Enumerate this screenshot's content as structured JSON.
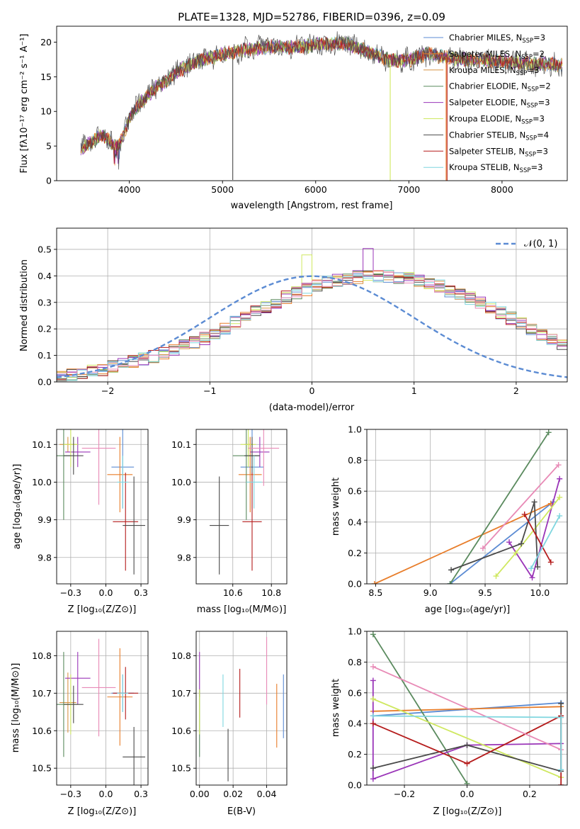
{
  "title": "PLATE=1328, MJD=52786, FIBERID=0396, z=0.09",
  "models": [
    {
      "name": "Chabrier MILES, N$_{SSP}$=3",
      "label": "Chabrier MILES, N",
      "sub": "SSP",
      "tail": "=3",
      "color": "#5b8bd3"
    },
    {
      "name": "Salpeter MILES, N$_{SSP}$=2",
      "label": "Salpeter MILES, N",
      "sub": "SSP",
      "tail": "=2",
      "color": "#e87d2a"
    },
    {
      "name": "Kroupa MILES, N$_{SSP}$=3",
      "label": "Kroupa MILES, N",
      "sub": "SSP",
      "tail": "=3",
      "color": "#d89445"
    },
    {
      "name": "Chabrier ELODIE, N$_{SSP}$=2",
      "label": "Chabrier ELODIE, N",
      "sub": "SSP",
      "tail": "=2",
      "color": "#5a8a5e"
    },
    {
      "name": "Salpeter ELODIE, N$_{SSP}$=3",
      "label": "Salpeter ELODIE, N",
      "sub": "SSP",
      "tail": "=3",
      "color": "#9a35b8"
    },
    {
      "name": "Kroupa ELODIE, N$_{SSP}$=3",
      "label": "Kroupa ELODIE, N",
      "sub": "SSP",
      "tail": "=3",
      "color": "#cfe860"
    },
    {
      "name": "Chabrier STELIB, N$_{SSP}$=4",
      "label": "Chabrier STELIB, N",
      "sub": "SSP",
      "tail": "=4",
      "color": "#4a4a4a"
    },
    {
      "name": "Salpeter STELIB, N$_{SSP}$=3",
      "label": "Salpeter STELIB, N",
      "sub": "SSP",
      "tail": "=3",
      "color": "#b51c1c"
    },
    {
      "name": "Kroupa STELIB, N$_{SSP}$=3",
      "label": "Kroupa STELIB, N",
      "sub": "SSP",
      "tail": "=3",
      "color": "#7fd6df"
    }
  ],
  "axes": {
    "spectrum": {
      "xlabel": "wavelength [Angstrom, rest frame]",
      "ylabel": "Flux [fλ10⁻¹⁷ erg cm⁻² s⁻¹ A⁻¹]"
    },
    "residuals": {
      "xlabel": "(data-model)/error",
      "ylabel": "Normed distribution",
      "legend": "𝒩(0, 1)"
    },
    "age_z": {
      "xlabel": "Z [log₁₀(Z/Z⊙)]",
      "ylabel": "age  [log₁₀(age/yr)]"
    },
    "age_mass": {
      "xlabel": "mass [log₁₀(M/M⊙)]"
    },
    "weight_age": {
      "xlabel": "age  [log₁₀(age/yr)]",
      "ylabel": "mass weight"
    },
    "mass_z": {
      "xlabel": "Z [log₁₀(Z/Z⊙)]",
      "ylabel": "mass [log₁₀(M/M⊙)]"
    },
    "mass_ebv": {
      "xlabel": "E(B-V)"
    },
    "weight_z": {
      "xlabel": "Z [log₁₀(Z/Z⊙)]",
      "ylabel": "mass weight"
    }
  },
  "chart_data": [
    {
      "type": "line",
      "title": "PLATE=1328, MJD=52786, FIBERID=0396, z=0.09",
      "xlabel": "wavelength [Angstrom, rest frame]",
      "ylabel": "Flux [fλ10⁻¹⁷ erg cm⁻² s⁻¹ A⁻¹]",
      "xlim": [
        3220,
        8700
      ],
      "ylim": [
        0,
        22.3
      ],
      "xticks": [
        4000,
        5000,
        6000,
        7000,
        8000
      ],
      "yticks": [
        0,
        5,
        10,
        15,
        20
      ],
      "grid": false,
      "legend": "top-right",
      "continuum": {
        "x": [
          3480,
          3600,
          3700,
          3800,
          3880,
          3950,
          4000,
          4100,
          4200,
          4300,
          4400,
          4500,
          4600,
          4700,
          4800,
          4900,
          5000,
          5100,
          5200,
          5300,
          5400,
          5500,
          5700,
          6000,
          6300,
          6500,
          6800,
          7000,
          7200,
          7500,
          8000,
          8300,
          8650
        ],
        "y": [
          4.6,
          5.6,
          6.6,
          5.6,
          4.9,
          7.2,
          9.0,
          11.0,
          12.2,
          13.6,
          14.4,
          15.6,
          16.4,
          17.0,
          17.6,
          17.8,
          18.4,
          18.4,
          18.8,
          19.0,
          19.1,
          19.4,
          19.2,
          19.6,
          19.9,
          18.9,
          17.4,
          17.4,
          18.3,
          17.6,
          17.2,
          16.9,
          16.7
        ]
      },
      "spikes": [
        {
          "x": 5110,
          "y": 0.1,
          "color": "#4a4a4a"
        },
        {
          "x": 6800,
          "y": 0.0,
          "color": "#cfe860"
        },
        {
          "x": 7400,
          "y": 0.0,
          "color": "#e87d2a"
        },
        {
          "x": 7410,
          "y": 0.0,
          "color": "#b51c1c"
        }
      ]
    },
    {
      "type": "line",
      "xlabel": "(data-model)/error",
      "ylabel": "Normed distribution",
      "xlim": [
        -2.5,
        2.5
      ],
      "ylim": [
        0,
        0.58
      ],
      "xticks": [
        -2,
        -1,
        0,
        1,
        2
      ],
      "yticks": [
        0.0,
        0.1,
        0.2,
        0.3,
        0.4,
        0.5
      ],
      "grid": true,
      "legend": "top-right",
      "bin_width": 0.1,
      "histogram_base": [
        0.02,
        0.025,
        0.03,
        0.04,
        0.045,
        0.055,
        0.065,
        0.075,
        0.085,
        0.095,
        0.105,
        0.12,
        0.135,
        0.15,
        0.165,
        0.185,
        0.205,
        0.225,
        0.245,
        0.265,
        0.285,
        0.3,
        0.32,
        0.335,
        0.35,
        0.365,
        0.375,
        0.385,
        0.39,
        0.395,
        0.4,
        0.4,
        0.4,
        0.395,
        0.39,
        0.38,
        0.37,
        0.36,
        0.345,
        0.33,
        0.315,
        0.3,
        0.28,
        0.26,
        0.24,
        0.22,
        0.2,
        0.18,
        0.16,
        0.145,
        0.125,
        0.11,
        0.095,
        0.085,
        0.07,
        0.06,
        0.05,
        0.04,
        0.035,
        0.03
      ],
      "normal": {
        "name": "𝒩(0, 1)",
        "mu": 0,
        "sigma": 1,
        "color": "#5b8bd3"
      }
    },
    {
      "type": "scatter",
      "xlabel": "Z [log₁₀(Z/Z⊙)]",
      "ylabel": "age  [log₁₀(age/yr)]",
      "xlim": [
        -0.35,
        0.3
      ],
      "ylim": [
        9.73,
        10.14
      ],
      "xticks": [
        -0.25,
        0.0,
        0.25
      ],
      "yticks": [
        9.8,
        9.9,
        10.0,
        10.1
      ],
      "grid": true,
      "points": [
        {
          "x": 0.12,
          "y": 10.04,
          "xerr": 0.08,
          "yerr": 0.11,
          "color": "#5b8bd3"
        },
        {
          "x": 0.1,
          "y": 10.02,
          "xerr": 0.09,
          "yerr": 0.1,
          "color": "#e87d2a"
        },
        {
          "x": -0.27,
          "y": 10.1,
          "xerr": 0.06,
          "yerr": 0.02,
          "color": "#d89445"
        },
        {
          "x": -0.3,
          "y": 10.07,
          "xerr": 0.05,
          "yerr": 0.17,
          "color": "#5a8a5e"
        },
        {
          "x": -0.2,
          "y": 10.08,
          "xerr": 0.09,
          "yerr": 0.04,
          "color": "#9a35b8"
        },
        {
          "x": -0.25,
          "y": 10.1,
          "xerr": 0.05,
          "yerr": 0.06,
          "color": "#cfe860"
        },
        {
          "x": -0.23,
          "y": 10.07,
          "xerr": 0.07,
          "yerr": 0.05,
          "color": "#4a4a4a"
        },
        {
          "x": 0.14,
          "y": 9.895,
          "xerr": 0.09,
          "yerr": 0.13,
          "color": "#b51c1c"
        },
        {
          "x": -0.05,
          "y": 10.09,
          "xerr": 0.12,
          "yerr": 0.15,
          "color": "#e88ab6"
        },
        {
          "x": 0.2,
          "y": 9.885,
          "xerr": 0.08,
          "yerr": 0.13,
          "color": "#4a4a4a"
        },
        {
          "x": 0.12,
          "y": 10.0,
          "xerr": 0.04,
          "yerr": 0.07,
          "color": "#7fd6df"
        }
      ]
    },
    {
      "type": "scatter",
      "xlabel": "mass [log₁₀(M/M⊙)]",
      "xlim": [
        10.41,
        10.88
      ],
      "ylim": [
        9.73,
        10.14
      ],
      "xticks": [
        10.6,
        10.8
      ],
      "yticks": [
        9.8,
        9.9,
        10.0,
        10.1
      ],
      "grid": true,
      "points": [
        {
          "x": 10.7,
          "y": 10.04,
          "xerr": 0.06,
          "yerr": 0.11,
          "color": "#5b8bd3"
        },
        {
          "x": 10.69,
          "y": 10.02,
          "xerr": 0.06,
          "yerr": 0.1,
          "color": "#e87d2a"
        },
        {
          "x": 10.68,
          "y": 10.1,
          "xerr": 0.02,
          "yerr": 0.02,
          "color": "#d89445"
        },
        {
          "x": 10.67,
          "y": 10.07,
          "xerr": 0.07,
          "yerr": 0.17,
          "color": "#5a8a5e"
        },
        {
          "x": 10.74,
          "y": 10.08,
          "xerr": 0.05,
          "yerr": 0.04,
          "color": "#9a35b8"
        },
        {
          "x": 10.68,
          "y": 10.1,
          "xerr": 0.04,
          "yerr": 0.06,
          "color": "#cfe860"
        },
        {
          "x": 10.7,
          "y": 10.07,
          "xerr": 0.04,
          "yerr": 0.05,
          "color": "#4a4a4a"
        },
        {
          "x": 10.7,
          "y": 9.895,
          "xerr": 0.05,
          "yerr": 0.13,
          "color": "#b51c1c"
        },
        {
          "x": 10.76,
          "y": 10.09,
          "xerr": 0.08,
          "yerr": 0.1,
          "color": "#e88ab6"
        },
        {
          "x": 10.53,
          "y": 9.885,
          "xerr": 0.05,
          "yerr": 0.13,
          "color": "#4a4a4a"
        },
        {
          "x": 10.71,
          "y": 10.0,
          "xerr": 0.04,
          "yerr": 0.07,
          "color": "#7fd6df"
        }
      ]
    },
    {
      "type": "line",
      "xlabel": "age  [log₁₀(age/yr)]",
      "ylabel": "mass weight",
      "xlim": [
        8.42,
        10.25
      ],
      "ylim": [
        0,
        1
      ],
      "xticks": [
        8.5,
        9.0,
        9.5,
        10.0
      ],
      "yticks": [
        0.0,
        0.2,
        0.4,
        0.6,
        0.8,
        1.0
      ],
      "grid": true,
      "series": [
        {
          "color": "#5b8bd3",
          "x": [
            9.18,
            10.12
          ],
          "y": [
            0.0,
            0.53
          ]
        },
        {
          "color": "#e87d2a",
          "x": [
            8.49,
            10.1
          ],
          "y": [
            0.0,
            0.52
          ]
        },
        {
          "color": "#5a8a5e",
          "x": [
            9.18,
            10.08
          ],
          "y": [
            0.0,
            0.98
          ]
        },
        {
          "color": "#9a35b8",
          "x": [
            9.72,
            9.93,
            10.18
          ],
          "y": [
            0.27,
            0.04,
            0.68
          ]
        },
        {
          "color": "#cfe860",
          "x": [
            9.6,
            9.78,
            10.18
          ],
          "y": [
            0.05,
            0.2,
            0.56
          ]
        },
        {
          "color": "#4a4a4a",
          "x": [
            9.19,
            9.83,
            9.95,
            9.98
          ],
          "y": [
            0.09,
            0.26,
            0.53,
            0.11
          ]
        },
        {
          "color": "#b51c1c",
          "x": [
            9.86,
            10.1
          ],
          "y": [
            0.45,
            0.14
          ]
        },
        {
          "color": "#e88ab6",
          "x": [
            9.48,
            10.17
          ],
          "y": [
            0.23,
            0.77
          ]
        },
        {
          "color": "#7fd6df",
          "x": [
            9.92,
            10.18
          ],
          "y": [
            0.1,
            0.44
          ]
        }
      ]
    },
    {
      "type": "scatter",
      "xlabel": "Z [log₁₀(Z/Z⊙)]",
      "ylabel": "mass [log₁₀(M/M⊙)]",
      "xlim": [
        -0.35,
        0.3
      ],
      "ylim": [
        10.455,
        10.865
      ],
      "xticks": [
        -0.25,
        0.0,
        0.25
      ],
      "yticks": [
        10.5,
        10.6,
        10.7,
        10.8
      ],
      "grid": true,
      "points": [
        {
          "x": 0.12,
          "y": 10.7,
          "xerr": 0.08,
          "yerr": 0.05,
          "color": "#5b8bd3"
        },
        {
          "x": 0.1,
          "y": 10.69,
          "xerr": 0.09,
          "yerr": 0.13,
          "color": "#e87d2a"
        },
        {
          "x": -0.27,
          "y": 10.675,
          "xerr": 0.06,
          "yerr": 0.08,
          "color": "#d89445"
        },
        {
          "x": -0.3,
          "y": 10.67,
          "xerr": 0.05,
          "yerr": 0.14,
          "color": "#5a8a5e"
        },
        {
          "x": -0.2,
          "y": 10.74,
          "xerr": 0.09,
          "yerr": 0.07,
          "color": "#9a35b8"
        },
        {
          "x": -0.25,
          "y": 10.67,
          "xerr": 0.05,
          "yerr": 0.08,
          "color": "#cfe860"
        },
        {
          "x": -0.23,
          "y": 10.67,
          "xerr": 0.07,
          "yerr": 0.05,
          "color": "#4a4a4a"
        },
        {
          "x": 0.14,
          "y": 10.7,
          "xerr": 0.09,
          "yerr": 0.07,
          "color": "#b51c1c"
        },
        {
          "x": -0.05,
          "y": 10.715,
          "xerr": 0.12,
          "yerr": 0.13,
          "color": "#e88ab6"
        },
        {
          "x": 0.2,
          "y": 10.53,
          "xerr": 0.08,
          "yerr": 0.08,
          "color": "#4a4a4a"
        },
        {
          "x": 0.12,
          "y": 10.7,
          "xerr": 0.04,
          "yerr": 0.05,
          "color": "#7fd6df"
        }
      ]
    },
    {
      "type": "scatter",
      "xlabel": "E(B-V)",
      "xlim": [
        -0.002,
        0.052
      ],
      "ylim": [
        10.455,
        10.865
      ],
      "xticks": [
        0.0,
        0.02,
        0.04
      ],
      "yticks": [
        10.5,
        10.6,
        10.7,
        10.8
      ],
      "grid": true,
      "points": [
        {
          "x": 0.0,
          "y": 10.75,
          "yerr": 0.06,
          "color": "#9a35b8"
        },
        {
          "x": 0.0,
          "y": 10.62,
          "yerr": 0.09,
          "color": "#5a8a5e"
        },
        {
          "x": 0.0,
          "y": 10.65,
          "yerr": 0.06,
          "color": "#cfe860"
        },
        {
          "x": 0.014,
          "y": 10.68,
          "yerr": 0.07,
          "color": "#7fd6df"
        },
        {
          "x": 0.017,
          "y": 10.535,
          "yerr": 0.07,
          "color": "#4a4a4a"
        },
        {
          "x": 0.024,
          "y": 10.7,
          "yerr": 0.065,
          "color": "#b51c1c"
        },
        {
          "x": 0.04,
          "y": 10.76,
          "yerr": 0.09,
          "color": "#e88ab6"
        },
        {
          "x": 0.046,
          "y": 10.64,
          "yerr": 0.085,
          "color": "#e87d2a"
        },
        {
          "x": 0.05,
          "y": 10.665,
          "yerr": 0.085,
          "color": "#5b8bd3"
        }
      ]
    },
    {
      "type": "line",
      "xlabel": "Z [log₁₀(Z/Z⊙)]",
      "ylabel": "mass weight",
      "xlim": [
        -0.32,
        0.32
      ],
      "ylim": [
        0,
        1
      ],
      "xticks": [
        -0.2,
        0.0,
        0.2
      ],
      "yticks": [
        0.0,
        0.2,
        0.4,
        0.6,
        0.8,
        1.0
      ],
      "grid": true,
      "series": [
        {
          "color": "#5b8bd3",
          "x": [
            -0.3,
            0.3
          ],
          "y": [
            0.45,
            0.535
          ]
        },
        {
          "color": "#e87d2a",
          "x": [
            -0.3,
            0.3
          ],
          "y": [
            0.48,
            0.51
          ]
        },
        {
          "color": "#5a8a5e",
          "x": [
            -0.3,
            0.0
          ],
          "y": [
            0.98,
            0.01
          ]
        },
        {
          "color": "#9a35b8",
          "x": [
            -0.3,
            -0.3,
            0.0,
            0.3
          ],
          "y": [
            0.68,
            0.04,
            0.26,
            0.27
          ]
        },
        {
          "color": "#cfe860",
          "x": [
            -0.3,
            0.3
          ],
          "y": [
            0.56,
            0.05
          ]
        },
        {
          "color": "#4a4a4a",
          "x": [
            -0.3,
            0.0,
            0.3,
            0.3
          ],
          "y": [
            0.11,
            0.26,
            0.09,
            0.53
          ]
        },
        {
          "color": "#b51c1c",
          "x": [
            -0.3,
            0.0,
            0.3,
            0.3
          ],
          "y": [
            0.4,
            0.14,
            0.45,
            0.0
          ]
        },
        {
          "color": "#e88ab6",
          "x": [
            -0.3,
            0.3
          ],
          "y": [
            0.77,
            0.23
          ]
        },
        {
          "color": "#7fd6df",
          "x": [
            -0.3,
            0.3,
            0.3
          ],
          "y": [
            0.45,
            0.44,
            0.1
          ]
        }
      ]
    }
  ]
}
